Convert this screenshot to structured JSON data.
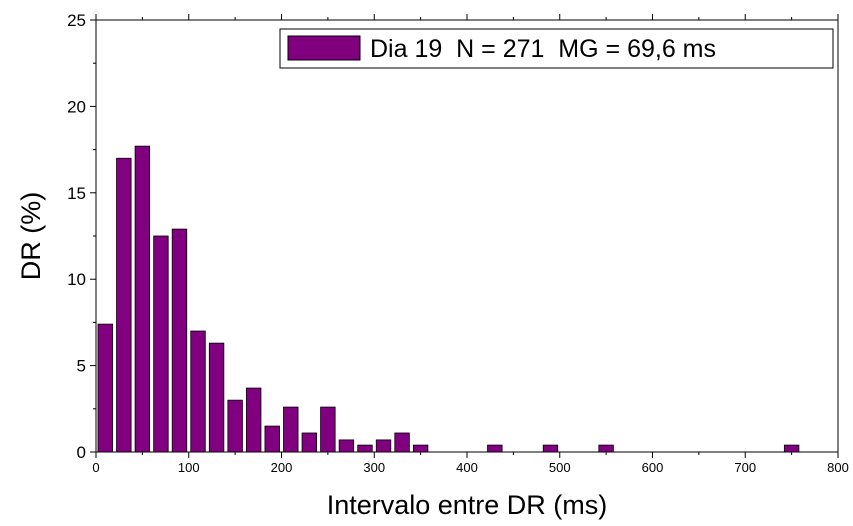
{
  "chart_data": {
    "type": "bar",
    "xlabel": "Intervalo entre DR (ms)",
    "ylabel": "DR (%)",
    "xlim": [
      0,
      800
    ],
    "ylim": [
      0,
      25
    ],
    "xticks": [
      0,
      100,
      200,
      300,
      400,
      500,
      600,
      700,
      800
    ],
    "yticks": [
      0,
      5,
      10,
      15,
      20,
      25
    ],
    "bin_width": 20,
    "bar_color": "#800080",
    "grid": false,
    "legend_position": "top-right",
    "series": [
      {
        "name": "Dia 19  N = 271  MG = 69,6 ms",
        "x": [
          10,
          30,
          50,
          70,
          90,
          110,
          130,
          150,
          170,
          190,
          210,
          230,
          250,
          270,
          290,
          310,
          330,
          350,
          430,
          490,
          550,
          750
        ],
        "values": [
          7.4,
          17.0,
          17.7,
          12.5,
          12.9,
          7.0,
          6.3,
          3.0,
          3.7,
          1.5,
          2.6,
          1.1,
          2.6,
          0.7,
          0.4,
          0.7,
          1.1,
          0.4,
          0.4,
          0.4,
          0.4,
          0.4
        ]
      }
    ]
  }
}
